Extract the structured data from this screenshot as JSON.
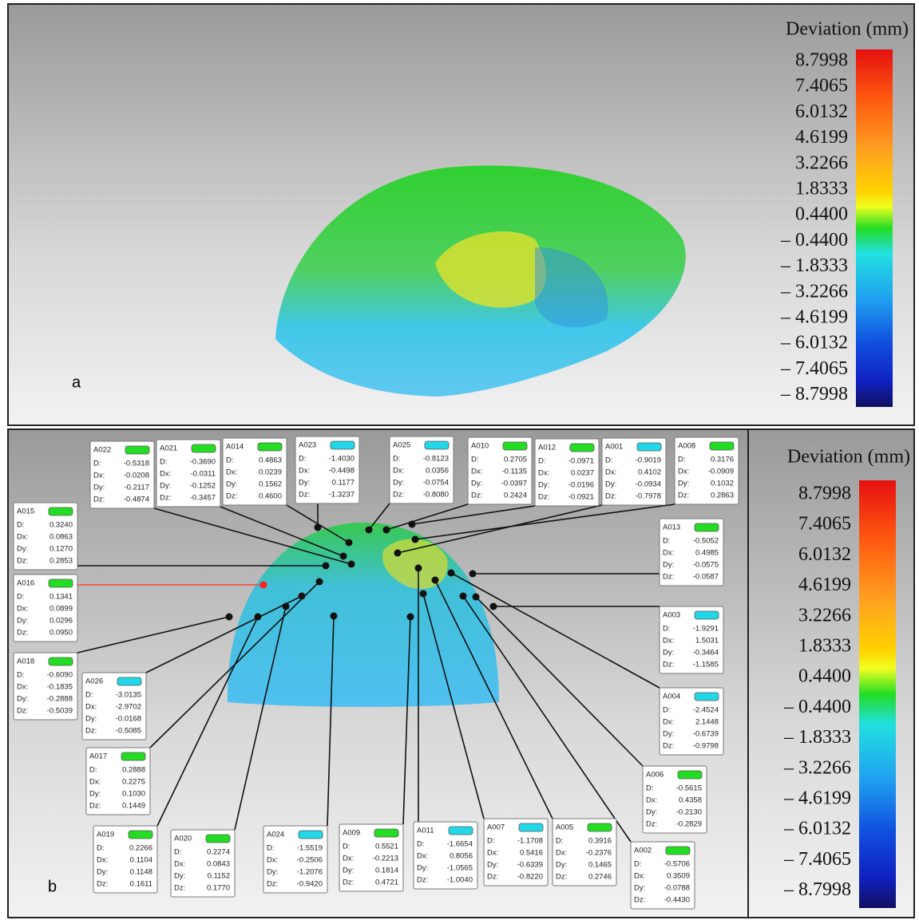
{
  "panel_a": {
    "label": "a",
    "legend": {
      "title": "Deviation (mm)",
      "labels": [
        "8.7998",
        "7.4065",
        "6.0132",
        "4.6199",
        "3.2266",
        "1.8333",
        "0.4400",
        "– 0.4400",
        "– 1.8333",
        "– 3.2266",
        "– 4.6199",
        "– 6.0132",
        "– 7.4065",
        "– 8.7998"
      ]
    }
  },
  "panel_b": {
    "label": "b",
    "legend": {
      "title": "Deviation (mm)",
      "labels": [
        "8.7998",
        "7.4065",
        "6.0132",
        "4.6199",
        "3.2266",
        "1.8333",
        "0.4400",
        "– 0.4400",
        "– 1.8333",
        "– 3.2266",
        "– 4.6199",
        "– 6.0132",
        "– 7.4065",
        "– 8.7998"
      ]
    },
    "field_labels": [
      "D:",
      "Dx:",
      "Dy:",
      "Dz:"
    ],
    "annotations": [
      {
        "id": "A022",
        "tag_color": "#22dd22",
        "values": [
          "-0.5318",
          "-0.0208",
          "-0.2117",
          "-0.4874"
        ]
      },
      {
        "id": "A021",
        "tag_color": "#22dd22",
        "values": [
          "-0.3690",
          "-0.0311",
          "-0.1252",
          "-0.3457"
        ]
      },
      {
        "id": "A014",
        "tag_color": "#22dd22",
        "values": [
          "0.4863",
          "0.0239",
          "0.1562",
          "0.4600"
        ]
      },
      {
        "id": "A023",
        "tag_color": "#22d8e8",
        "values": [
          "-1.4030",
          "-0.4498",
          "0.1177",
          "-1.3237"
        ]
      },
      {
        "id": "A025",
        "tag_color": "#22d8e8",
        "values": [
          "-0.8123",
          "0.0356",
          "-0.0754",
          "-0.8080"
        ]
      },
      {
        "id": "A010",
        "tag_color": "#22dd22",
        "values": [
          "0.2705",
          "-0.1135",
          "-0.0397",
          "0.2424"
        ]
      },
      {
        "id": "A012",
        "tag_color": "#22dd22",
        "values": [
          "-0.0971",
          "0.0237",
          "-0.0196",
          "-0.0921"
        ]
      },
      {
        "id": "A001",
        "tag_color": "#22d8e8",
        "values": [
          "-0.9019",
          "0.4102",
          "-0.0934",
          "-0.7978"
        ]
      },
      {
        "id": "A008",
        "tag_color": "#22dd22",
        "values": [
          "0.3176",
          "-0.0909",
          "0.1032",
          "0.2863"
        ]
      },
      {
        "id": "A015",
        "tag_color": "#22dd22",
        "values": [
          "0.3240",
          "0.0863",
          "0.1270",
          "0.2853"
        ]
      },
      {
        "id": "A016",
        "tag_color": "#22dd22",
        "values": [
          "0.1341",
          "0.0899",
          "0.0296",
          "0.0950"
        ]
      },
      {
        "id": "A018",
        "tag_color": "#22dd22",
        "values": [
          "-0.6090",
          "-0.1835",
          "-0.2888",
          "-0.5039"
        ]
      },
      {
        "id": "A026",
        "tag_color": "#22d8e8",
        "values": [
          "-3.0135",
          "-2.9702",
          "-0.0168",
          "-0.5085"
        ]
      },
      {
        "id": "A017",
        "tag_color": "#22dd22",
        "values": [
          "0.2888",
          "0.2275",
          "0.1030",
          "0.1449"
        ]
      },
      {
        "id": "A019",
        "tag_color": "#22dd22",
        "values": [
          "0.2266",
          "0.1104",
          "0.1148",
          "0.1611"
        ]
      },
      {
        "id": "A020",
        "tag_color": "#22dd22",
        "values": [
          "0.2274",
          "0.0843",
          "0.1152",
          "0.1770"
        ]
      },
      {
        "id": "A024",
        "tag_color": "#22d8e8",
        "values": [
          "-1.5519",
          "-0.2506",
          "-1.2076",
          "-0.9420"
        ]
      },
      {
        "id": "A009",
        "tag_color": "#22dd22",
        "values": [
          "0.5521",
          "-0.2213",
          "0.1814",
          "0.4721"
        ]
      },
      {
        "id": "A011",
        "tag_color": "#22d8e8",
        "values": [
          "-1.6654",
          "0.8056",
          "-1.0565",
          "-1.0040"
        ]
      },
      {
        "id": "A007",
        "tag_color": "#22d8e8",
        "values": [
          "-1.1708",
          "0.5416",
          "-0.6339",
          "-0.8220"
        ]
      },
      {
        "id": "A005",
        "tag_color": "#22dd22",
        "values": [
          "0.3916",
          "-0.2376",
          "0.1465",
          "0.2746"
        ]
      },
      {
        "id": "A002",
        "tag_color": "#22dd22",
        "values": [
          "-0.5706",
          "0.3509",
          "-0.0788",
          "-0.4430"
        ]
      },
      {
        "id": "A006",
        "tag_color": "#22dd22",
        "values": [
          "-0.5615",
          "0.4358",
          "-0.2130",
          "-0.2829"
        ]
      },
      {
        "id": "A004",
        "tag_color": "#22d8e8",
        "values": [
          "-2.4524",
          "2.1448",
          "-0.6739",
          "-0.9798"
        ]
      },
      {
        "id": "A003",
        "tag_color": "#22d8e8",
        "values": [
          "-1.9291",
          "1.5031",
          "-0.3464",
          "-1.1585"
        ]
      },
      {
        "id": "A013",
        "tag_color": "#22dd22",
        "values": [
          "-0.5052",
          "0.4985",
          "-0.0575",
          "-0.0587"
        ]
      }
    ]
  }
}
